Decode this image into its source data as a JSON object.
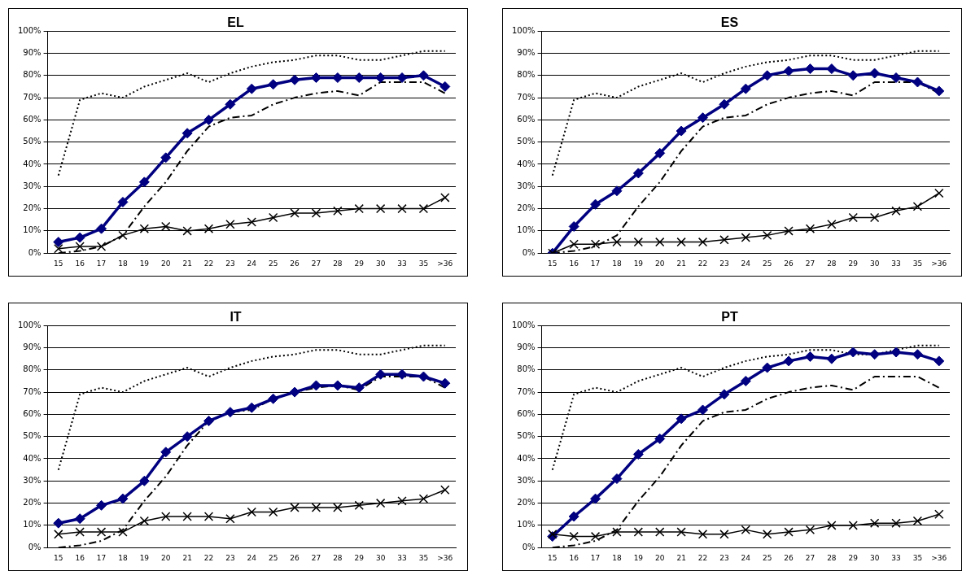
{
  "chart_data": [
    {
      "type": "line",
      "title": "EL",
      "categories": [
        "15",
        "16",
        "17",
        "18",
        "19",
        "20",
        "21",
        "22",
        "23",
        "24",
        "25",
        "26",
        "27",
        "28",
        "29",
        "30",
        "33",
        "35",
        ">36"
      ],
      "ylim": [
        0,
        100
      ],
      "yticks": [
        {
          "value": 0,
          "label": "0%"
        },
        {
          "value": 10,
          "label": "10%"
        },
        {
          "value": 20,
          "label": "20%"
        },
        {
          "value": 30,
          "label": "30%"
        },
        {
          "value": 40,
          "label": "40%"
        },
        {
          "value": 50,
          "label": "50%"
        },
        {
          "value": 60,
          "label": "60%"
        },
        {
          "value": 70,
          "label": "70%"
        },
        {
          "value": 80,
          "label": "80%"
        },
        {
          "value": 90,
          "label": "90%"
        },
        {
          "value": 100,
          "label": "100%"
        }
      ],
      "grid": "y",
      "legend": false,
      "series": [
        {
          "color": "#000000",
          "marker": "none",
          "line_style": "dotted",
          "values": [
            35,
            69,
            72,
            70,
            75,
            78,
            81,
            77,
            81,
            84,
            86,
            87,
            89,
            89,
            87,
            87,
            89,
            91,
            91
          ]
        },
        {
          "color": "#000000",
          "marker": "none",
          "line_style": "dashed",
          "values": [
            0,
            1,
            3,
            8,
            21,
            32,
            46,
            57,
            61,
            62,
            67,
            70,
            72,
            73,
            71,
            77,
            77,
            77,
            72
          ]
        },
        {
          "color": "#000000",
          "marker": "cross",
          "line_style": "solid",
          "values": [
            2,
            3,
            3,
            8,
            11,
            12,
            10,
            11,
            13,
            14,
            16,
            18,
            18,
            19,
            20,
            20,
            20,
            20,
            25
          ]
        },
        {
          "color": "#000080",
          "marker": "diamond",
          "line_style": "solid",
          "values": [
            5,
            7,
            11,
            23,
            32,
            43,
            54,
            60,
            67,
            74,
            76,
            78,
            79,
            79,
            79,
            79,
            79,
            80,
            75
          ]
        }
      ]
    },
    {
      "type": "line",
      "title": "ES",
      "categories": [
        "15",
        "16",
        "17",
        "18",
        "19",
        "20",
        "21",
        "22",
        "23",
        "24",
        "25",
        "26",
        "27",
        "28",
        "29",
        "30",
        "33",
        "35",
        ">36"
      ],
      "ylim": [
        0,
        100
      ],
      "yticks": [
        {
          "value": 0,
          "label": "0%"
        },
        {
          "value": 10,
          "label": "10%"
        },
        {
          "value": 20,
          "label": "20%"
        },
        {
          "value": 30,
          "label": "30%"
        },
        {
          "value": 40,
          "label": "40%"
        },
        {
          "value": 50,
          "label": "50%"
        },
        {
          "value": 60,
          "label": "60%"
        },
        {
          "value": 70,
          "label": "70%"
        },
        {
          "value": 80,
          "label": "80%"
        },
        {
          "value": 90,
          "label": "90%"
        },
        {
          "value": 100,
          "label": "100%"
        }
      ],
      "grid": "y",
      "legend": false,
      "series": [
        {
          "color": "#000000",
          "marker": "none",
          "line_style": "dotted",
          "values": [
            35,
            69,
            72,
            70,
            75,
            78,
            81,
            77,
            81,
            84,
            86,
            87,
            89,
            89,
            87,
            87,
            89,
            91,
            91
          ]
        },
        {
          "color": "#000000",
          "marker": "none",
          "line_style": "dashed",
          "values": [
            0,
            1,
            3,
            8,
            21,
            32,
            46,
            57,
            61,
            62,
            67,
            70,
            72,
            73,
            71,
            77,
            77,
            77,
            72
          ]
        },
        {
          "color": "#000000",
          "marker": "cross",
          "line_style": "solid",
          "values": [
            0,
            4,
            4,
            5,
            5,
            5,
            5,
            5,
            6,
            7,
            8,
            10,
            11,
            13,
            16,
            16,
            19,
            21,
            27
          ]
        },
        {
          "color": "#000080",
          "marker": "diamond",
          "line_style": "solid",
          "values": [
            0,
            12,
            22,
            28,
            36,
            45,
            55,
            61,
            67,
            74,
            80,
            82,
            83,
            83,
            80,
            81,
            79,
            77,
            73
          ]
        }
      ]
    },
    {
      "type": "line",
      "title": "IT",
      "categories": [
        "15",
        "16",
        "17",
        "18",
        "19",
        "20",
        "21",
        "22",
        "23",
        "24",
        "25",
        "26",
        "27",
        "28",
        "29",
        "30",
        "33",
        "35",
        ">36"
      ],
      "ylim": [
        0,
        100
      ],
      "yticks": [
        {
          "value": 0,
          "label": "0%"
        },
        {
          "value": 10,
          "label": "10%"
        },
        {
          "value": 20,
          "label": "20%"
        },
        {
          "value": 30,
          "label": "30%"
        },
        {
          "value": 40,
          "label": "40%"
        },
        {
          "value": 50,
          "label": "50%"
        },
        {
          "value": 60,
          "label": "60%"
        },
        {
          "value": 70,
          "label": "70%"
        },
        {
          "value": 80,
          "label": "80%"
        },
        {
          "value": 90,
          "label": "90%"
        },
        {
          "value": 100,
          "label": "100%"
        }
      ],
      "grid": "y",
      "legend": false,
      "series": [
        {
          "color": "#000000",
          "marker": "none",
          "line_style": "dotted",
          "values": [
            35,
            69,
            72,
            70,
            75,
            78,
            81,
            77,
            81,
            84,
            86,
            87,
            89,
            89,
            87,
            87,
            89,
            91,
            91
          ]
        },
        {
          "color": "#000000",
          "marker": "none",
          "line_style": "dashed",
          "values": [
            0,
            1,
            3,
            8,
            21,
            32,
            46,
            57,
            61,
            62,
            67,
            70,
            72,
            73,
            71,
            77,
            77,
            77,
            72
          ]
        },
        {
          "color": "#000000",
          "marker": "cross",
          "line_style": "solid",
          "values": [
            6,
            7,
            7,
            7,
            12,
            14,
            14,
            14,
            13,
            16,
            16,
            18,
            18,
            18,
            19,
            20,
            21,
            22,
            26
          ]
        },
        {
          "color": "#000080",
          "marker": "diamond",
          "line_style": "solid",
          "values": [
            11,
            13,
            19,
            22,
            30,
            43,
            50,
            57,
            61,
            63,
            67,
            70,
            73,
            73,
            72,
            78,
            78,
            77,
            74
          ]
        }
      ]
    },
    {
      "type": "line",
      "title": "PT",
      "categories": [
        "15",
        "16",
        "17",
        "18",
        "19",
        "20",
        "21",
        "22",
        "23",
        "24",
        "25",
        "26",
        "27",
        "28",
        "29",
        "30",
        "33",
        "35",
        ">36"
      ],
      "ylim": [
        0,
        100
      ],
      "yticks": [
        {
          "value": 0,
          "label": "0%"
        },
        {
          "value": 10,
          "label": "10%"
        },
        {
          "value": 20,
          "label": "20%"
        },
        {
          "value": 30,
          "label": "30%"
        },
        {
          "value": 40,
          "label": "40%"
        },
        {
          "value": 50,
          "label": "50%"
        },
        {
          "value": 60,
          "label": "60%"
        },
        {
          "value": 70,
          "label": "70%"
        },
        {
          "value": 80,
          "label": "80%"
        },
        {
          "value": 90,
          "label": "90%"
        },
        {
          "value": 100,
          "label": "100%"
        }
      ],
      "grid": "y",
      "legend": false,
      "series": [
        {
          "color": "#000000",
          "marker": "none",
          "line_style": "dotted",
          "values": [
            35,
            69,
            72,
            70,
            75,
            78,
            81,
            77,
            81,
            84,
            86,
            87,
            89,
            89,
            87,
            87,
            89,
            91,
            91
          ]
        },
        {
          "color": "#000000",
          "marker": "none",
          "line_style": "dashed",
          "values": [
            0,
            1,
            3,
            8,
            21,
            32,
            46,
            57,
            61,
            62,
            67,
            70,
            72,
            73,
            71,
            77,
            77,
            77,
            72
          ]
        },
        {
          "color": "#000000",
          "marker": "cross",
          "line_style": "solid",
          "values": [
            6,
            5,
            5,
            7,
            7,
            7,
            7,
            6,
            6,
            8,
            6,
            7,
            8,
            10,
            10,
            11,
            11,
            12,
            15
          ]
        },
        {
          "color": "#000080",
          "marker": "diamond",
          "line_style": "solid",
          "values": [
            5,
            14,
            22,
            31,
            42,
            49,
            58,
            62,
            69,
            75,
            81,
            84,
            86,
            85,
            88,
            87,
            88,
            87,
            84
          ]
        }
      ]
    }
  ]
}
